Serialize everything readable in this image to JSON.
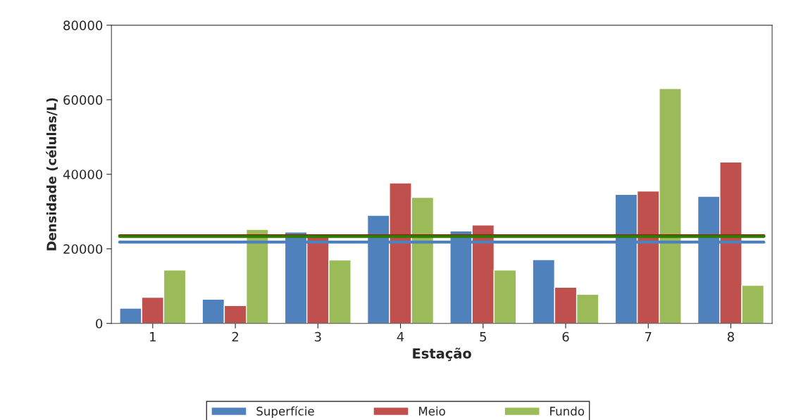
{
  "chart_data": {
    "type": "bar",
    "xlabel": "Estação",
    "ylabel": "Densidade (células/L)",
    "categories": [
      "1",
      "2",
      "3",
      "4",
      "5",
      "6",
      "7",
      "8"
    ],
    "series": [
      {
        "name": "Superfície",
        "color": "#4f81bd",
        "values": [
          4100,
          6500,
          24500,
          29000,
          24800,
          17100,
          34600,
          34100
        ]
      },
      {
        "name": "Meio",
        "color": "#c0504d",
        "values": [
          7000,
          4800,
          23300,
          37700,
          26400,
          9700,
          35500,
          43300
        ]
      },
      {
        "name": "Fundo",
        "color": "#9bbb59",
        "values": [
          14300,
          25200,
          17000,
          33800,
          14300,
          7800,
          63000,
          10200
        ]
      }
    ],
    "ylim": [
      0,
      80000
    ],
    "yticks": [
      0,
      20000,
      40000,
      60000,
      80000
    ],
    "ref_lines": [
      {
        "axis": "y",
        "value": 21800,
        "color": "#4f81bd"
      },
      {
        "axis": "y",
        "value": 23500,
        "color": "#8b2a10"
      },
      {
        "axis": "y",
        "value": 23300,
        "color": "#2e7d00"
      }
    ],
    "grid": false,
    "legend": "bottom"
  }
}
